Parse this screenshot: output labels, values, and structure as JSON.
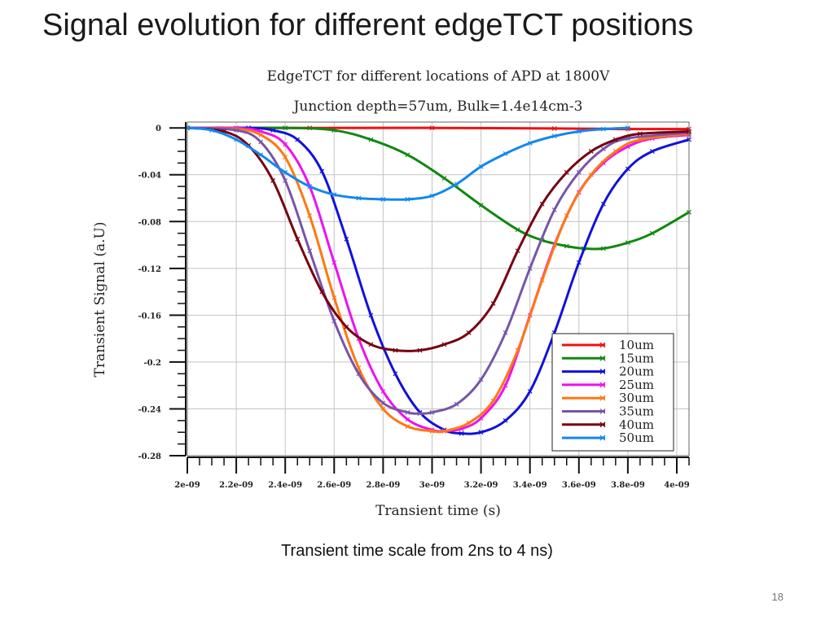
{
  "slide": {
    "title": "Signal evolution for different edgeTCT positions",
    "caption": "Transient time scale from 2ns to 4 ns)",
    "page_number": "18"
  },
  "chart_data": {
    "type": "line",
    "title": "EdgeTCT for different locations of APD at 1800V",
    "subtitle": "Junction depth=57um, Bulk=1.4e14cm-3",
    "xlabel": "Transient time (s)",
    "ylabel": "Transient Signal (a.U)",
    "xlim": [
      2e-09,
      4.05e-09
    ],
    "ylim": [
      -0.28,
      0.005
    ],
    "x_ticks": [
      2e-09,
      2.2e-09,
      2.4e-09,
      2.6e-09,
      2.8e-09,
      3e-09,
      3.2e-09,
      3.4e-09,
      3.6e-09,
      3.8e-09,
      4e-09
    ],
    "x_tick_labels": [
      "2e-09",
      "2.2e-09",
      "2.4e-09",
      "2.6e-09",
      "2.8e-09",
      "3e-09",
      "3.2e-09",
      "3.4e-09",
      "3.6e-09",
      "3.8e-09",
      "4e-09"
    ],
    "y_ticks": [
      0,
      -0.04,
      -0.08,
      -0.12,
      -0.16,
      -0.2,
      -0.24,
      -0.28
    ],
    "y_tick_labels": [
      "0",
      "-0.04",
      "-0.08",
      "-0.12",
      "-0.16",
      "-0.2",
      "-0.24",
      "-0.28"
    ],
    "grid": true,
    "legend_position": "bottom-right",
    "series": [
      {
        "name": "10um",
        "color": "#ee1111",
        "x": [
          2e-09,
          2.5e-09,
          3e-09,
          3.5e-09,
          3.8e-09,
          4.05e-09
        ],
        "y": [
          0,
          0,
          0,
          -0.0005,
          -0.001,
          -0.001
        ]
      },
      {
        "name": "15um",
        "color": "#118811",
        "x": [
          2e-09,
          2.4e-09,
          2.6e-09,
          2.75e-09,
          2.9e-09,
          3.05e-09,
          3.2e-09,
          3.35e-09,
          3.45e-09,
          3.55e-09,
          3.62e-09,
          3.7e-09,
          3.8e-09,
          3.9e-09,
          4.05e-09
        ],
        "y": [
          0,
          0,
          -0.002,
          -0.01,
          -0.023,
          -0.043,
          -0.066,
          -0.087,
          -0.096,
          -0.101,
          -0.103,
          -0.103,
          -0.098,
          -0.09,
          -0.072
        ]
      },
      {
        "name": "20um",
        "color": "#1111dd",
        "x": [
          2e-09,
          2.25e-09,
          2.35e-09,
          2.45e-09,
          2.55e-09,
          2.65e-09,
          2.75e-09,
          2.85e-09,
          2.95e-09,
          3.05e-09,
          3.12e-09,
          3.2e-09,
          3.3e-09,
          3.4e-09,
          3.5e-09,
          3.6e-09,
          3.7e-09,
          3.8e-09,
          3.9e-09,
          4.05e-09
        ],
        "y": [
          0,
          0,
          -0.002,
          -0.01,
          -0.037,
          -0.095,
          -0.16,
          -0.21,
          -0.243,
          -0.258,
          -0.261,
          -0.26,
          -0.25,
          -0.225,
          -0.175,
          -0.115,
          -0.065,
          -0.035,
          -0.02,
          -0.01
        ]
      },
      {
        "name": "25um",
        "color": "#ee11ee",
        "x": [
          2e-09,
          2.2e-09,
          2.3e-09,
          2.4e-09,
          2.5e-09,
          2.6e-09,
          2.7e-09,
          2.8e-09,
          2.9e-09,
          3e-09,
          3.05e-09,
          3.12e-09,
          3.2e-09,
          3.3e-09,
          3.4e-09,
          3.5e-09,
          3.6e-09,
          3.7e-09,
          3.8e-09,
          3.9e-09,
          4.05e-09
        ],
        "y": [
          0,
          0,
          -0.003,
          -0.014,
          -0.05,
          -0.115,
          -0.18,
          -0.225,
          -0.249,
          -0.258,
          -0.259,
          -0.257,
          -0.248,
          -0.22,
          -0.16,
          -0.1,
          -0.055,
          -0.03,
          -0.016,
          -0.009,
          -0.006
        ]
      },
      {
        "name": "30um",
        "color": "#ff7711",
        "x": [
          2e-09,
          2.2e-09,
          2.3e-09,
          2.4e-09,
          2.5e-09,
          2.6e-09,
          2.7e-09,
          2.8e-09,
          2.9e-09,
          3e-09,
          3.05e-09,
          3.15e-09,
          3.25e-09,
          3.35e-09,
          3.45e-09,
          3.55e-09,
          3.65e-09,
          3.75e-09,
          3.85e-09,
          4.05e-09
        ],
        "y": [
          0,
          -0.001,
          -0.006,
          -0.025,
          -0.075,
          -0.145,
          -0.205,
          -0.24,
          -0.255,
          -0.259,
          -0.259,
          -0.252,
          -0.233,
          -0.19,
          -0.13,
          -0.075,
          -0.04,
          -0.02,
          -0.01,
          -0.005
        ]
      },
      {
        "name": "35um",
        "color": "#7755aa",
        "x": [
          2e-09,
          2.2e-09,
          2.3e-09,
          2.4e-09,
          2.5e-09,
          2.6e-09,
          2.7e-09,
          2.8e-09,
          2.9e-09,
          2.95e-09,
          3e-09,
          3.1e-09,
          3.2e-09,
          3.3e-09,
          3.4e-09,
          3.5e-09,
          3.6e-09,
          3.7e-09,
          3.8e-09,
          4.05e-09
        ],
        "y": [
          0,
          -0.002,
          -0.012,
          -0.045,
          -0.105,
          -0.165,
          -0.21,
          -0.235,
          -0.243,
          -0.244,
          -0.243,
          -0.236,
          -0.215,
          -0.175,
          -0.12,
          -0.07,
          -0.038,
          -0.018,
          -0.009,
          -0.004
        ]
      },
      {
        "name": "40um",
        "color": "#770011",
        "x": [
          2e-09,
          2.15e-09,
          2.25e-09,
          2.35e-09,
          2.45e-09,
          2.55e-09,
          2.65e-09,
          2.75e-09,
          2.85e-09,
          2.95e-09,
          3.05e-09,
          3.15e-09,
          3.25e-09,
          3.35e-09,
          3.45e-09,
          3.55e-09,
          3.65e-09,
          3.75e-09,
          3.85e-09,
          4.05e-09
        ],
        "y": [
          0,
          -0.003,
          -0.015,
          -0.045,
          -0.095,
          -0.14,
          -0.17,
          -0.185,
          -0.19,
          -0.19,
          -0.185,
          -0.175,
          -0.15,
          -0.105,
          -0.065,
          -0.038,
          -0.02,
          -0.01,
          -0.005,
          -0.003
        ]
      },
      {
        "name": "50um",
        "color": "#1188ee",
        "x": [
          2e-09,
          2.1e-09,
          2.2e-09,
          2.3e-09,
          2.4e-09,
          2.5e-09,
          2.6e-09,
          2.7e-09,
          2.8e-09,
          2.9e-09,
          3e-09,
          3.1e-09,
          3.2e-09,
          3.3e-09,
          3.4e-09,
          3.5e-09,
          3.6e-09,
          3.7e-09,
          3.8e-09
        ],
        "y": [
          0,
          -0.002,
          -0.01,
          -0.023,
          -0.038,
          -0.05,
          -0.057,
          -0.06,
          -0.061,
          -0.061,
          -0.058,
          -0.048,
          -0.033,
          -0.022,
          -0.013,
          -0.007,
          -0.003,
          -0.001,
          0
        ]
      }
    ]
  }
}
